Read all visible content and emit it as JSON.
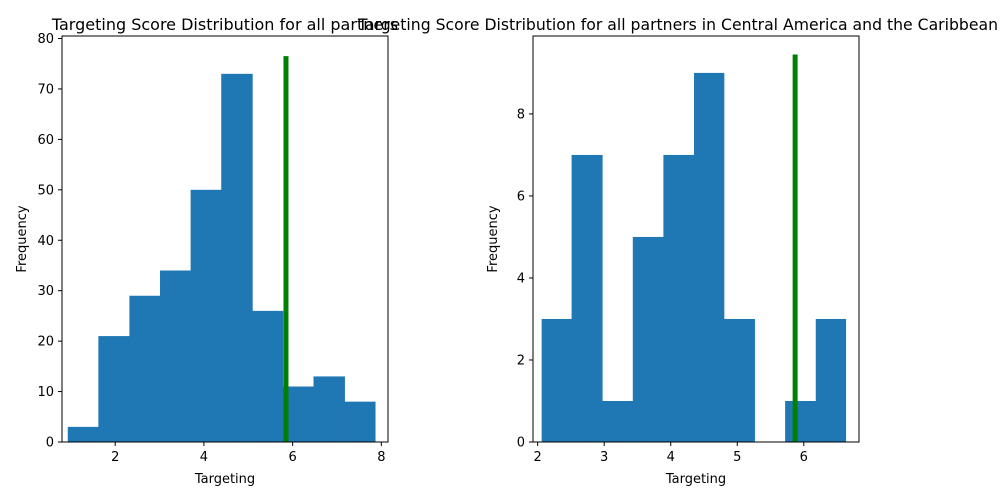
{
  "chart_data": [
    {
      "type": "bar",
      "title": "Targeting Score Distribution for all partners",
      "xlabel": "Targeting",
      "ylabel": "Frequency",
      "xlim": [
        0.8,
        8.15
      ],
      "ylim": [
        0,
        80.5
      ],
      "x_ticks": [
        2,
        4,
        6,
        8
      ],
      "y_ticks": [
        0,
        10,
        20,
        30,
        40,
        50,
        60,
        70,
        80
      ],
      "bins": [
        {
          "x0": 0.93,
          "x1": 1.62,
          "count": 3
        },
        {
          "x0": 1.62,
          "x1": 2.32,
          "count": 21
        },
        {
          "x0": 2.32,
          "x1": 3.01,
          "count": 29
        },
        {
          "x0": 3.01,
          "x1": 3.7,
          "count": 34
        },
        {
          "x0": 3.7,
          "x1": 4.39,
          "count": 50
        },
        {
          "x0": 4.39,
          "x1": 5.09,
          "count": 73
        },
        {
          "x0": 5.09,
          "x1": 5.78,
          "count": 26
        },
        {
          "x0": 5.78,
          "x1": 6.47,
          "count": 11
        },
        {
          "x0": 6.47,
          "x1": 7.17,
          "count": 13
        },
        {
          "x0": 7.17,
          "x1": 7.86,
          "count": 8
        }
      ],
      "bar_color": "#1f77b4",
      "marker_line": {
        "x": 5.85,
        "y_max": 76.5,
        "color": "#008000"
      },
      "grid": false,
      "legend": "none"
    },
    {
      "type": "bar",
      "title": "Targeting Score Distribution for all partners in Central America and the Caribbean",
      "xlabel": "Targeting",
      "ylabel": "Frequency",
      "xlim": [
        1.93,
        6.83
      ],
      "ylim": [
        0,
        9.9
      ],
      "x_ticks": [
        2,
        3,
        4,
        5,
        6
      ],
      "y_ticks": [
        0,
        2,
        4,
        6,
        8
      ],
      "bins": [
        {
          "x0": 2.06,
          "x1": 2.51,
          "count": 3
        },
        {
          "x0": 2.51,
          "x1": 2.97,
          "count": 7
        },
        {
          "x0": 2.97,
          "x1": 3.43,
          "count": 1
        },
        {
          "x0": 3.43,
          "x1": 3.89,
          "count": 5
        },
        {
          "x0": 3.89,
          "x1": 4.35,
          "count": 7
        },
        {
          "x0": 4.35,
          "x1": 4.8,
          "count": 9
        },
        {
          "x0": 4.8,
          "x1": 5.26,
          "count": 3
        },
        {
          "x0": 5.26,
          "x1": 5.72,
          "count": 0
        },
        {
          "x0": 5.72,
          "x1": 6.18,
          "count": 1
        },
        {
          "x0": 6.18,
          "x1": 6.63,
          "count": 3
        }
      ],
      "bar_color": "#1f77b4",
      "marker_line": {
        "x": 5.87,
        "y_max": 9.45,
        "color": "#008000"
      },
      "grid": false,
      "legend": "none"
    }
  ]
}
